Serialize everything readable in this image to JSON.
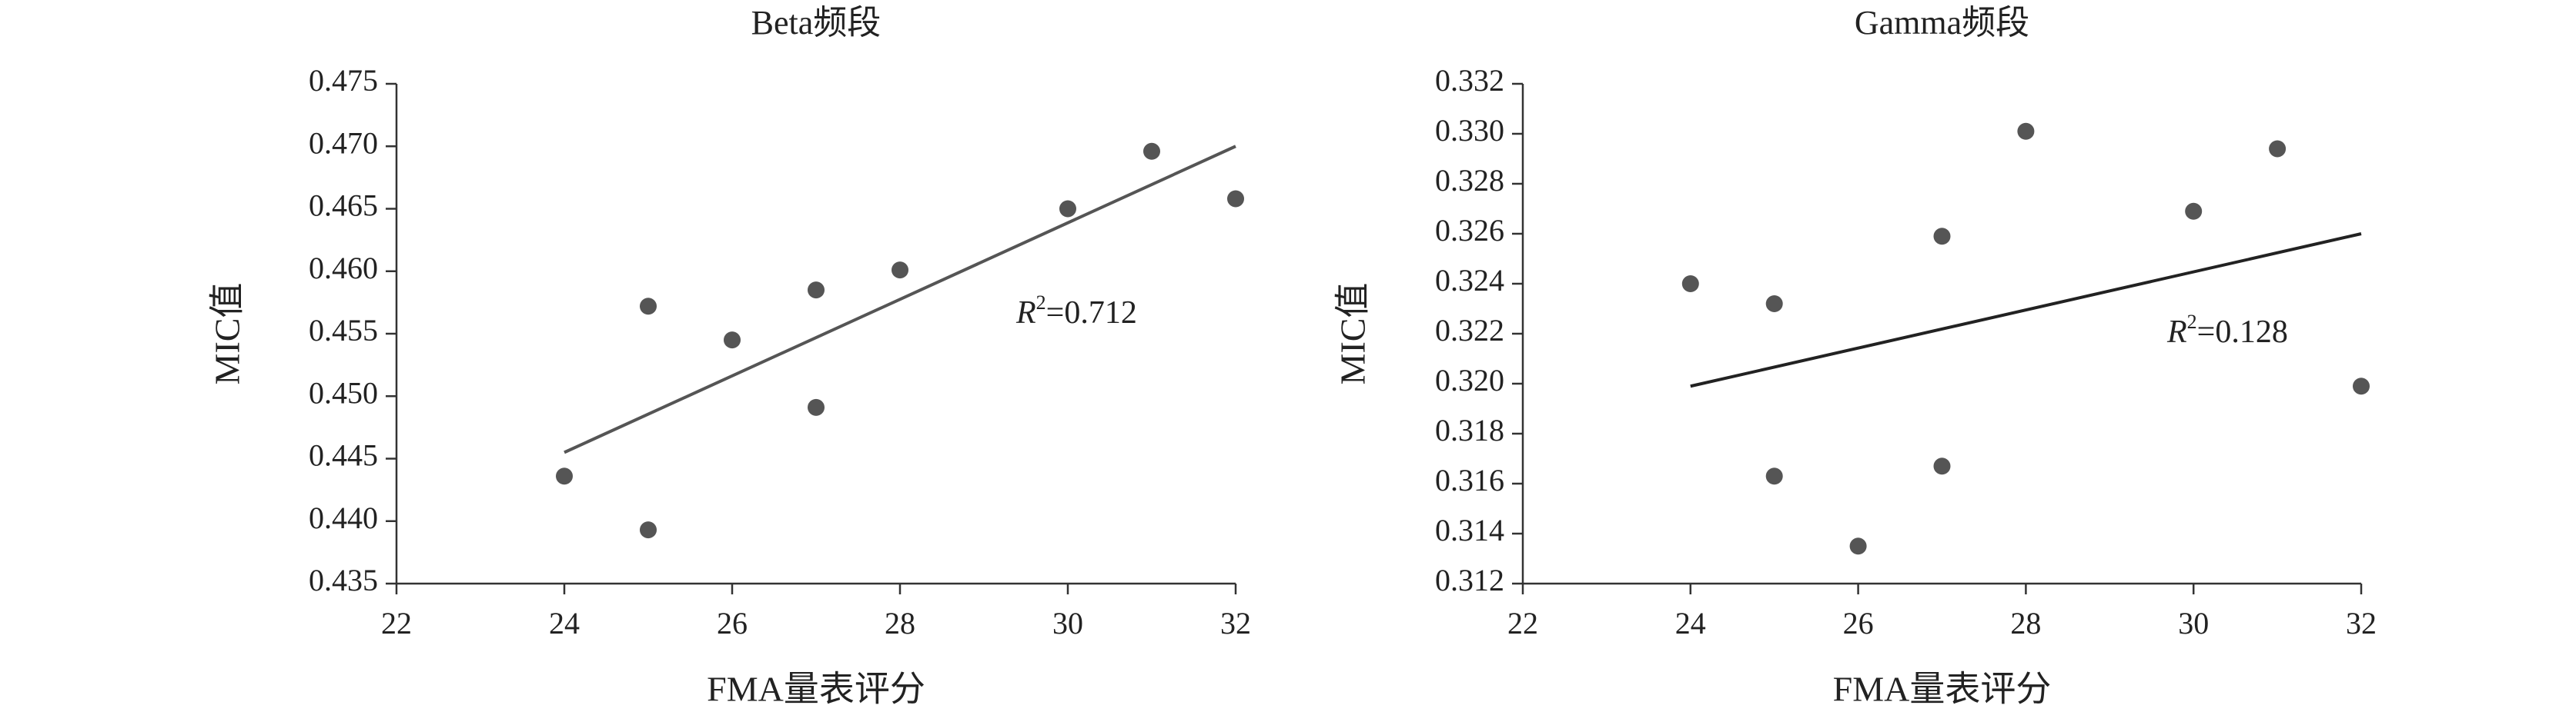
{
  "chart_data": [
    {
      "type": "scatter",
      "title": "Beta频段",
      "x_label": "FMA量表评分",
      "y_label": "MIC值",
      "x": [
        24,
        25,
        25,
        26,
        27,
        27,
        28,
        30,
        31,
        32
      ],
      "y": [
        0.4436,
        0.4393,
        0.4572,
        0.4545,
        0.4585,
        0.4491,
        0.4601,
        0.465,
        0.4696,
        0.4658
      ],
      "color": "#555555",
      "trendline": {
        "x": [
          24,
          32
        ],
        "y": [
          0.4455,
          0.47
        ],
        "color": "#555555"
      },
      "annotation": {
        "symbol": "R",
        "superscript": "2",
        "text": "=0.712"
      },
      "xlim": [
        22,
        32
      ],
      "xticks": [
        22,
        24,
        26,
        28,
        30,
        32
      ],
      "ylim": [
        0.435,
        0.475
      ],
      "yticks": [
        0.435,
        {
          "value": 0.44,
          "label": "0.440"
        },
        0.445,
        {
          "value": 0.45,
          "label": "0.450"
        },
        0.455,
        {
          "value": 0.46,
          "label": "0.460"
        },
        0.465,
        {
          "value": 0.47,
          "label": "0.470"
        },
        0.475
      ]
    },
    {
      "type": "scatter",
      "title": "Gamma频段",
      "x_label": "FMA量表评分",
      "y_label": "MIC值",
      "x": [
        24,
        25,
        25,
        26,
        27,
        27,
        28,
        30,
        31,
        32
      ],
      "y": [
        0.324,
        0.3232,
        0.3163,
        0.3135,
        0.3259,
        0.3167,
        0.3301,
        0.3269,
        0.3294,
        0.3199
      ],
      "color": "#555555",
      "trendline": {
        "x": [
          24,
          32
        ],
        "y": [
          0.3199,
          0.326
        ],
        "color": "#222222"
      },
      "annotation": {
        "symbol": "R",
        "superscript": "2",
        "text": "=0.128"
      },
      "xlim": [
        22,
        32
      ],
      "xticks": [
        22,
        24,
        26,
        28,
        30,
        32
      ],
      "ylim": [
        0.312,
        0.332
      ],
      "yticks": [
        0.312,
        0.314,
        0.316,
        0.318,
        {
          "value": 0.32,
          "label": "0.320"
        },
        0.322,
        0.324,
        0.326,
        0.328,
        {
          "value": 0.33,
          "label": "0.330"
        },
        0.332
      ]
    }
  ]
}
